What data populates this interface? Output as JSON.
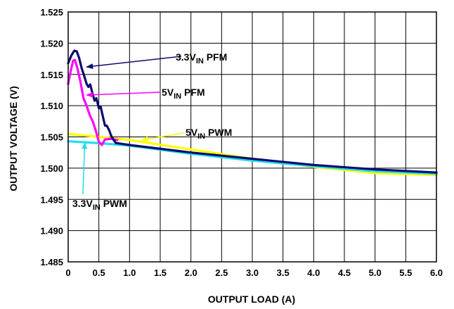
{
  "chart_data": {
    "type": "line",
    "title": "",
    "xlabel": "OUTPUT LOAD (A)",
    "ylabel": "OUTPUT VOLTAGE (V)",
    "xlim": [
      0,
      6.0
    ],
    "ylim": [
      1.485,
      1.525
    ],
    "grid": true,
    "x_ticks": [
      "0",
      "0.5",
      "1.0",
      "1.5",
      "2.0",
      "2.5",
      "3.0",
      "3.5",
      "4.0",
      "4.5",
      "5.0",
      "5.5",
      "6.0"
    ],
    "y_ticks": [
      "1.485",
      "1.490",
      "1.495",
      "1.500",
      "1.505",
      "1.510",
      "1.515",
      "1.520",
      "1.525"
    ],
    "series": [
      {
        "name": "3.3VIN PFM",
        "color": "#0a0a6e",
        "x": [
          0,
          0.05,
          0.1,
          0.14,
          0.18,
          0.22,
          0.26,
          0.3,
          0.33,
          0.36,
          0.4,
          0.43,
          0.46,
          0.5,
          0.53,
          0.56,
          0.6,
          0.63,
          0.67,
          0.7,
          0.74,
          0.78,
          0.8,
          1.0,
          2.0,
          3.0,
          4.0,
          5.0,
          6.0
        ],
        "y": [
          1.5168,
          1.518,
          1.5188,
          1.5187,
          1.5176,
          1.516,
          1.5148,
          1.5135,
          1.513,
          1.5134,
          1.5118,
          1.5108,
          1.5112,
          1.5096,
          1.5098,
          1.5085,
          1.5068,
          1.5068,
          1.506,
          1.5052,
          1.5045,
          1.504,
          1.504,
          1.5037,
          1.5025,
          1.5015,
          1.5005,
          1.4998,
          1.4993
        ]
      },
      {
        "name": "5VIN PFM",
        "color": "#ff00ff",
        "x": [
          0,
          0.04,
          0.08,
          0.11,
          0.15,
          0.2,
          0.25,
          0.3,
          0.35,
          0.4,
          0.45,
          0.5,
          0.55,
          0.6,
          0.7,
          0.8
        ],
        "y": [
          1.5135,
          1.5155,
          1.5172,
          1.5173,
          1.516,
          1.5138,
          1.5112,
          1.51,
          1.5085,
          1.5075,
          1.506,
          1.5042,
          1.5037,
          1.5046,
          1.5047,
          1.5045
        ]
      },
      {
        "name": "5VIN PWM",
        "color": "#ffff00",
        "x": [
          0,
          0.5,
          1.0,
          2.0,
          3.0,
          4.0,
          5.0,
          6.0
        ],
        "y": [
          1.5055,
          1.505,
          1.5045,
          1.503,
          1.5015,
          1.5002,
          1.4992,
          1.4989
        ]
      },
      {
        "name": "3.3VIN PWM",
        "color": "#22ddee",
        "x": [
          0,
          0.5,
          1.0,
          2.0,
          3.0,
          4.0,
          5.0,
          6.0
        ],
        "y": [
          1.5043,
          1.504,
          1.5036,
          1.5023,
          1.5012,
          1.5003,
          1.4995,
          1.4991
        ]
      }
    ],
    "annotations": [
      {
        "series": 0,
        "text_main": "3.3V",
        "text_sub": "IN",
        "text_tail": " PFM",
        "point": [
          0.3,
          1.5162
        ]
      },
      {
        "series": 1,
        "text_main": "5V",
        "text_sub": "IN",
        "text_tail": " PFM",
        "point": [
          0.3,
          1.5117
        ]
      },
      {
        "series": 2,
        "text_main": "5V",
        "text_sub": "IN",
        "text_tail": " PWM",
        "point": [
          1.2,
          1.5045
        ]
      },
      {
        "series": 3,
        "text_main": "3.3V",
        "text_sub": "IN",
        "text_tail": " PWM",
        "point": [
          0.27,
          1.5041
        ]
      }
    ]
  }
}
